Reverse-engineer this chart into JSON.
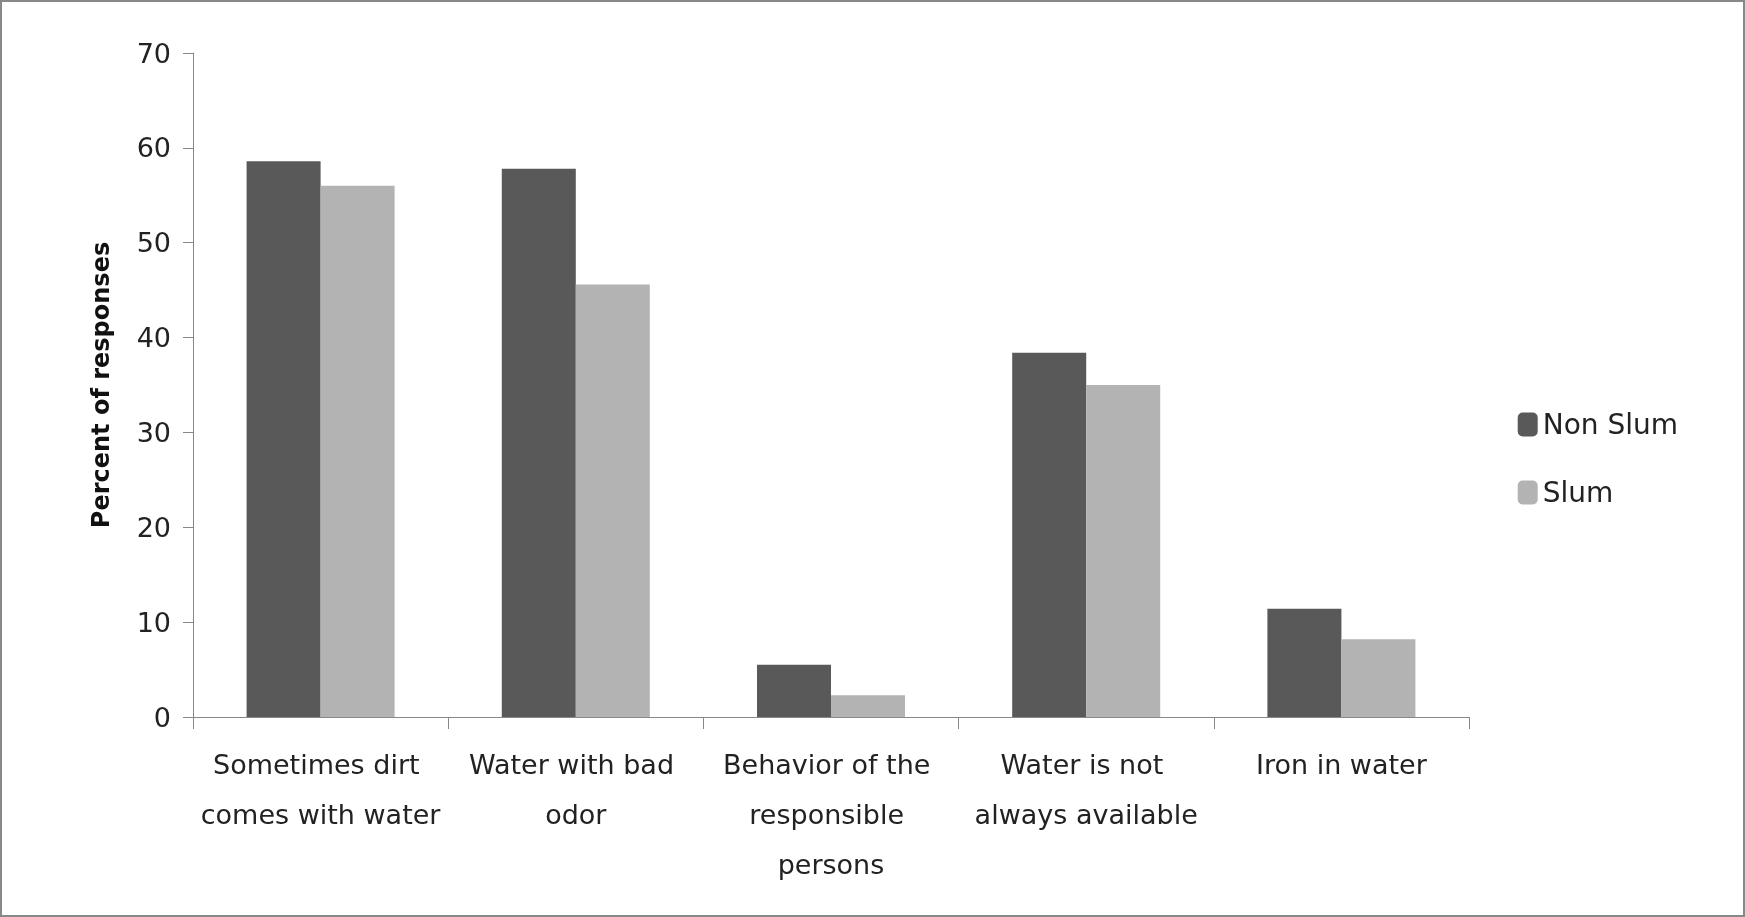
{
  "chart_data": {
    "type": "bar",
    "ylabel": "Percent of responses",
    "categories": [
      "Sometimes dirt comes with water",
      "Water with bad odor",
      "Behavior of the responsible persons",
      "Water is not always available",
      "Iron in water"
    ],
    "series": [
      {
        "name": "Non Slum",
        "color": "#595959",
        "values": [
          58.6,
          57.8,
          5.5,
          38.4,
          11.4
        ]
      },
      {
        "name": "Slum",
        "color": "#b3b3b3",
        "values": [
          56.0,
          45.6,
          2.3,
          35.0,
          8.2
        ]
      }
    ],
    "ylim": [
      0,
      70
    ],
    "yticks": [
      0,
      10,
      20,
      30,
      40,
      50,
      60,
      70
    ],
    "grid": false,
    "legend": "right"
  }
}
